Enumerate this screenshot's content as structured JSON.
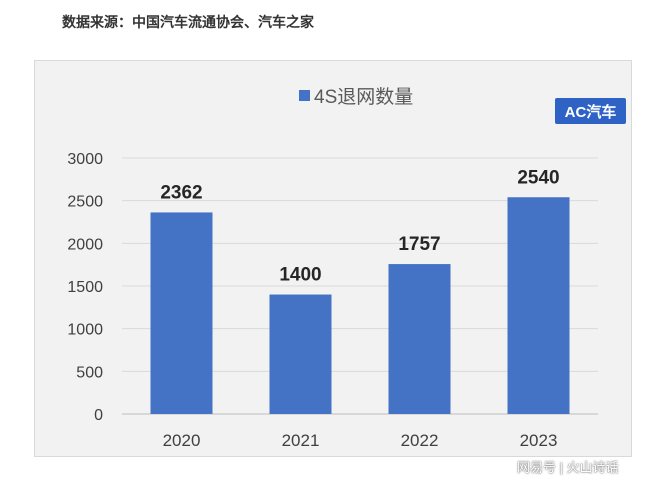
{
  "source_note": "数据来源：中国汽车流通协会、汽车之家",
  "brand_logo": "AC汽车",
  "watermark": "网易号 | 火山诗话",
  "colors": {
    "bar": "#4472c4",
    "grid": "#d9d9d9",
    "panel": "#f2f2f2"
  },
  "chart_data": {
    "type": "bar",
    "title": "",
    "legend": [
      "4S退网数量"
    ],
    "legend_position": "top-center",
    "categories": [
      "2020",
      "2021",
      "2022",
      "2023"
    ],
    "series": [
      {
        "name": "4S退网数量",
        "values": [
          2362,
          1400,
          1757,
          2540
        ]
      }
    ],
    "ylim": [
      0,
      3000
    ],
    "yticks": [
      0,
      500,
      1000,
      1500,
      2000,
      2500,
      3000
    ],
    "grid": true,
    "data_labels": true
  }
}
